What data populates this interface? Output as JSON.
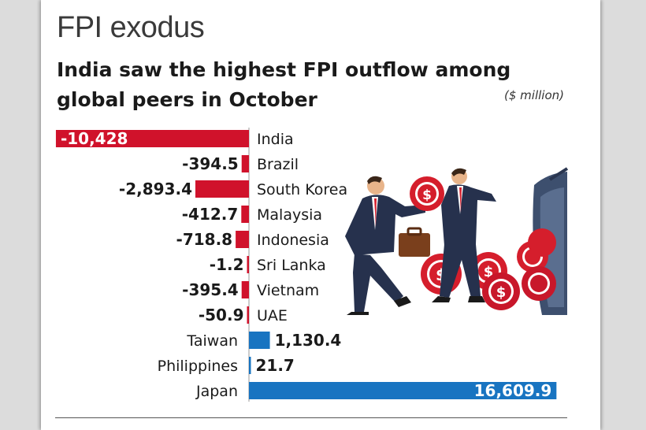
{
  "kicker": "FPI exodus",
  "headline": "India saw the highest FPI outflow among global peers in October",
  "unit_note": "($ million)",
  "colors": {
    "negative": "#d0122b",
    "positive": "#1874c1",
    "text": "#1a1a1a"
  },
  "chart_data": {
    "type": "bar",
    "orientation": "horizontal",
    "title": "India saw the highest FPI outflow among global peers in October",
    "unit": "$ million",
    "categories": [
      "India",
      "Brazil",
      "South Korea",
      "Malaysia",
      "Indonesia",
      "Sri Lanka",
      "Vietnam",
      "UAE",
      "Taiwan",
      "Philippines",
      "Japan"
    ],
    "values": [
      -10428,
      -394.5,
      -2893.4,
      -412.7,
      -718.8,
      -1.2,
      -395.4,
      -50.9,
      1130.4,
      21.7,
      16609.9
    ],
    "labels": [
      "-10,428",
      "-394.5",
      "-2,893.4",
      "-412.7",
      "-718.8",
      "-1.2",
      "-395.4",
      "-50.9",
      "1,130.4",
      "21.7",
      "16,609.9"
    ]
  }
}
